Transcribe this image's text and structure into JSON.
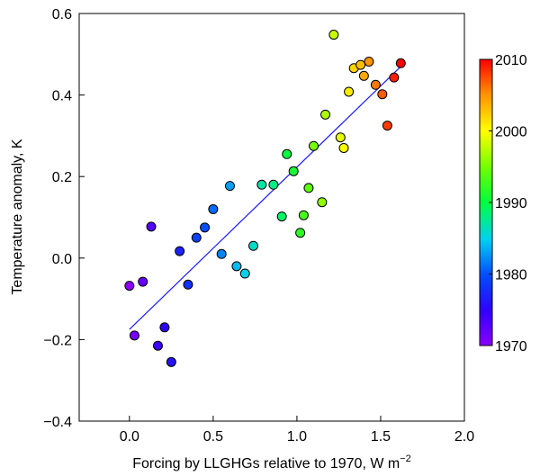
{
  "chart_data": {
    "type": "scatter",
    "title": "",
    "xlabel": "Forcing by LLGHGs relative to 1970, W m",
    "xlabel_unit_exponent": "−2",
    "ylabel": "Temperature anomaly, K",
    "xlim": [
      -0.3,
      2.0
    ],
    "ylim": [
      -0.4,
      0.6
    ],
    "x_ticks": [
      0.0,
      0.5,
      1.0,
      1.5,
      2.0
    ],
    "x_tick_labels": [
      "0.0",
      "0.5",
      "1.0",
      "1.5",
      "2.0"
    ],
    "y_ticks": [
      -0.4,
      -0.2,
      0.0,
      0.2,
      0.4,
      0.6
    ],
    "y_tick_labels": [
      "−0.4",
      "−0.2",
      "0.0",
      "0.2",
      "0.4",
      "0.6"
    ],
    "grid": false,
    "colorbar": {
      "variable": "year",
      "range": [
        1970,
        2010
      ],
      "ticks": [
        1970,
        1980,
        1990,
        2000,
        2010
      ],
      "tick_labels": [
        "1970",
        "1980",
        "1990",
        "2000",
        "2010"
      ],
      "colormap": "rainbow (violet → blue → cyan → green → yellow → red)"
    },
    "trend_line": {
      "x": [
        0.0,
        1.62
      ],
      "y": [
        -0.175,
        0.47
      ],
      "color": "#1a1aff"
    },
    "points": [
      {
        "x": 0.0,
        "y": -0.068,
        "year": 1970
      },
      {
        "x": 0.03,
        "y": -0.19,
        "year": 1971
      },
      {
        "x": 0.08,
        "y": -0.058,
        "year": 1972
      },
      {
        "x": 0.13,
        "y": 0.077,
        "year": 1973
      },
      {
        "x": 0.17,
        "y": -0.215,
        "year": 1974
      },
      {
        "x": 0.21,
        "y": -0.17,
        "year": 1975
      },
      {
        "x": 0.25,
        "y": -0.255,
        "year": 1976
      },
      {
        "x": 0.3,
        "y": 0.017,
        "year": 1977
      },
      {
        "x": 0.35,
        "y": -0.065,
        "year": 1978
      },
      {
        "x": 0.4,
        "y": 0.05,
        "year": 1979
      },
      {
        "x": 0.45,
        "y": 0.075,
        "year": 1980
      },
      {
        "x": 0.5,
        "y": 0.12,
        "year": 1981
      },
      {
        "x": 0.55,
        "y": 0.01,
        "year": 1982
      },
      {
        "x": 0.6,
        "y": 0.177,
        "year": 1983
      },
      {
        "x": 0.64,
        "y": -0.02,
        "year": 1984
      },
      {
        "x": 0.69,
        "y": -0.038,
        "year": 1985
      },
      {
        "x": 0.74,
        "y": 0.03,
        "year": 1986
      },
      {
        "x": 0.79,
        "y": 0.18,
        "year": 1987
      },
      {
        "x": 0.86,
        "y": 0.18,
        "year": 1988
      },
      {
        "x": 0.91,
        "y": 0.102,
        "year": 1989
      },
      {
        "x": 0.94,
        "y": 0.255,
        "year": 1990
      },
      {
        "x": 0.98,
        "y": 0.213,
        "year": 1991
      },
      {
        "x": 1.02,
        "y": 0.062,
        "year": 1992
      },
      {
        "x": 1.04,
        "y": 0.105,
        "year": 1993
      },
      {
        "x": 1.07,
        "y": 0.172,
        "year": 1994
      },
      {
        "x": 1.1,
        "y": 0.275,
        "year": 1995
      },
      {
        "x": 1.15,
        "y": 0.137,
        "year": 1996
      },
      {
        "x": 1.17,
        "y": 0.352,
        "year": 1997
      },
      {
        "x": 1.22,
        "y": 0.548,
        "year": 1998
      },
      {
        "x": 1.26,
        "y": 0.296,
        "year": 1999
      },
      {
        "x": 1.28,
        "y": 0.27,
        "year": 2000
      },
      {
        "x": 1.31,
        "y": 0.408,
        "year": 2001
      },
      {
        "x": 1.34,
        "y": 0.466,
        "year": 2002
      },
      {
        "x": 1.38,
        "y": 0.474,
        "year": 2003
      },
      {
        "x": 1.4,
        "y": 0.447,
        "year": 2004
      },
      {
        "x": 1.43,
        "y": 0.482,
        "year": 2005
      },
      {
        "x": 1.47,
        "y": 0.425,
        "year": 2006
      },
      {
        "x": 1.51,
        "y": 0.402,
        "year": 2007
      },
      {
        "x": 1.54,
        "y": 0.325,
        "year": 2008
      },
      {
        "x": 1.58,
        "y": 0.443,
        "year": 2009
      },
      {
        "x": 1.62,
        "y": 0.478,
        "year": 2010
      }
    ]
  }
}
